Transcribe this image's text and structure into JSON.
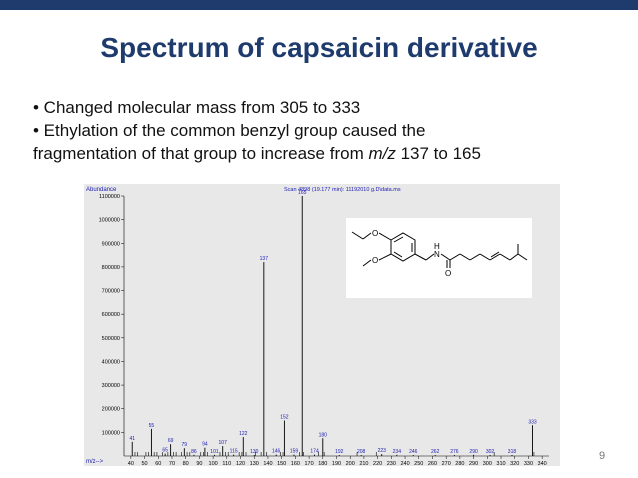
{
  "slide": {
    "title": "Spectrum of capsaicin derivative",
    "bullet1": "• Changed molecular mass from 305 to 333",
    "bullet2_line1": "• Ethylation of the common benzyl group caused the",
    "bullet2_line2_pre": "fragmentation of that group to increase from ",
    "bullet2_line2_mz": "m/z",
    "bullet2_line2_post": " 137 to 165",
    "page_number": "9",
    "title_color": "#1f3b6d",
    "band_color": "#1f3b6d"
  },
  "spectrum_header": {
    "abundance_label": "Abundance",
    "scan_label": "Scan 4898 (19.177 min): 11192010 g.D\\data.ms",
    "mz_label": "m/z-->"
  },
  "molecule": {
    "atom_labels": [
      "O",
      "O",
      "N",
      "H",
      "O"
    ]
  },
  "chart_data": {
    "type": "bar",
    "title": "Scan 4898 (19.177 min): 11192010 g.D\\data.ms",
    "xlabel": "m/z-->",
    "ylabel": "Abundance",
    "xlim": [
      35,
      345
    ],
    "ylim": [
      0,
      1100000
    ],
    "grid": false,
    "y_ticks": [
      100000,
      200000,
      300000,
      400000,
      500000,
      600000,
      700000,
      800000,
      900000,
      1000000,
      1100000
    ],
    "y_tick_labels": [
      "100000",
      "200000",
      "300000",
      "400000",
      "500000",
      "600000",
      "700000",
      "800000",
      "900000",
      "1000000",
      "1100000"
    ],
    "x_ticks": [
      40,
      50,
      60,
      70,
      80,
      90,
      100,
      110,
      120,
      130,
      140,
      150,
      160,
      170,
      180,
      190,
      200,
      210,
      220,
      230,
      240,
      250,
      260,
      270,
      280,
      290,
      300,
      310,
      320,
      330,
      340
    ],
    "peaks": [
      {
        "mz": 41,
        "abundance": 60000,
        "label": "41"
      },
      {
        "mz": 55,
        "abundance": 115000,
        "label": "55"
      },
      {
        "mz": 65,
        "abundance": 10000,
        "label": "65"
      },
      {
        "mz": 69,
        "abundance": 50000,
        "label": "69"
      },
      {
        "mz": 79,
        "abundance": 33000,
        "label": "79"
      },
      {
        "mz": 86,
        "abundance": 5000,
        "label": "86"
      },
      {
        "mz": 94,
        "abundance": 35000,
        "label": "94"
      },
      {
        "mz": 101,
        "abundance": 5000,
        "label": "101"
      },
      {
        "mz": 107,
        "abundance": 42000,
        "label": "107"
      },
      {
        "mz": 115,
        "abundance": 6000,
        "label": "115"
      },
      {
        "mz": 122,
        "abundance": 80000,
        "label": "122"
      },
      {
        "mz": 130,
        "abundance": 4000,
        "label": "130"
      },
      {
        "mz": 137,
        "abundance": 820000,
        "label": "137"
      },
      {
        "mz": 146,
        "abundance": 6000,
        "label": "146"
      },
      {
        "mz": 152,
        "abundance": 150000,
        "label": "152"
      },
      {
        "mz": 159,
        "abundance": 6000,
        "label": "159"
      },
      {
        "mz": 165,
        "abundance": 1100000,
        "label": "165"
      },
      {
        "mz": 174,
        "abundance": 6000,
        "label": "174"
      },
      {
        "mz": 180,
        "abundance": 75000,
        "label": "180"
      },
      {
        "mz": 192,
        "abundance": 4000,
        "label": "192"
      },
      {
        "mz": 208,
        "abundance": 4000,
        "label": "208"
      },
      {
        "mz": 223,
        "abundance": 8000,
        "label": "223"
      },
      {
        "mz": 234,
        "abundance": 5000,
        "label": "234"
      },
      {
        "mz": 246,
        "abundance": 4000,
        "label": "246"
      },
      {
        "mz": 262,
        "abundance": 4000,
        "label": "262"
      },
      {
        "mz": 276,
        "abundance": 4000,
        "label": "276"
      },
      {
        "mz": 290,
        "abundance": 5000,
        "label": "290"
      },
      {
        "mz": 302,
        "abundance": 4000,
        "label": "302"
      },
      {
        "mz": 318,
        "abundance": 4000,
        "label": "318"
      },
      {
        "mz": 333,
        "abundance": 130000,
        "label": "333"
      }
    ],
    "minor_peaks_mz": [
      43,
      45,
      51,
      53,
      57,
      59,
      63,
      67,
      71,
      73,
      77,
      81,
      83,
      91,
      93,
      96,
      105,
      109,
      111,
      119,
      121,
      124,
      131,
      135,
      139,
      149,
      151,
      163,
      166,
      177,
      181,
      205,
      219,
      305,
      334
    ]
  }
}
